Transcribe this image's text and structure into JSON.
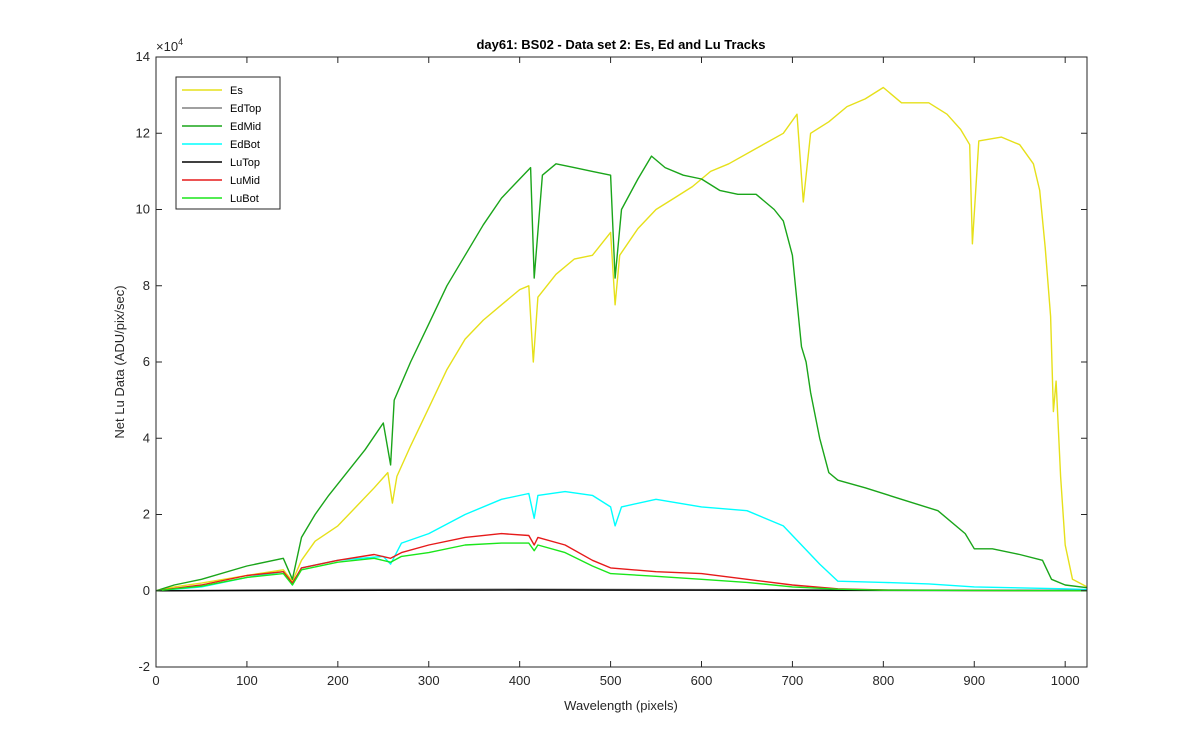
{
  "chart_data": {
    "type": "line",
    "title": "day61: BS02 - Data set 2: Es, Ed and Lu Tracks",
    "xlabel": "Wavelength (pixels)",
    "ylabel": "Net Lu Data (ADU/pix/sec)",
    "xlim": [
      0,
      1024
    ],
    "ylim": [
      -20000,
      140000
    ],
    "xticks": [
      0,
      100,
      200,
      300,
      400,
      500,
      600,
      700,
      800,
      900,
      1000
    ],
    "yticks": [
      -20000,
      0,
      20000,
      40000,
      60000,
      80000,
      100000,
      120000,
      140000
    ],
    "ytick_labels": [
      "-2",
      "0",
      "2",
      "4",
      "6",
      "8",
      "10",
      "12",
      "14"
    ],
    "y_exponent_base": "×10",
    "y_exponent_power": "4",
    "grid": false,
    "legend_position": "top-left",
    "series": [
      {
        "name": "Es",
        "color": "#e6e01a",
        "points": [
          [
            0,
            0
          ],
          [
            20,
            1000
          ],
          [
            50,
            2000
          ],
          [
            100,
            4000
          ],
          [
            140,
            5500
          ],
          [
            150,
            2500
          ],
          [
            160,
            8000
          ],
          [
            175,
            13000
          ],
          [
            200,
            17000
          ],
          [
            220,
            22000
          ],
          [
            240,
            27000
          ],
          [
            255,
            31000
          ],
          [
            260,
            23000
          ],
          [
            265,
            30000
          ],
          [
            280,
            38000
          ],
          [
            300,
            48000
          ],
          [
            320,
            58000
          ],
          [
            340,
            66000
          ],
          [
            360,
            71000
          ],
          [
            380,
            75000
          ],
          [
            400,
            79000
          ],
          [
            410,
            80000
          ],
          [
            415,
            60000
          ],
          [
            420,
            77000
          ],
          [
            440,
            83000
          ],
          [
            460,
            87000
          ],
          [
            480,
            88000
          ],
          [
            500,
            94000
          ],
          [
            505,
            75000
          ],
          [
            510,
            88000
          ],
          [
            530,
            95000
          ],
          [
            550,
            100000
          ],
          [
            570,
            103000
          ],
          [
            590,
            106000
          ],
          [
            610,
            110000
          ],
          [
            630,
            112000
          ],
          [
            660,
            116000
          ],
          [
            690,
            120000
          ],
          [
            705,
            125000
          ],
          [
            712,
            102000
          ],
          [
            720,
            120000
          ],
          [
            740,
            123000
          ],
          [
            760,
            127000
          ],
          [
            780,
            129000
          ],
          [
            800,
            132000
          ],
          [
            820,
            128000
          ],
          [
            850,
            128000
          ],
          [
            870,
            125000
          ],
          [
            885,
            121000
          ],
          [
            895,
            117000
          ],
          [
            898,
            91000
          ],
          [
            905,
            118000
          ],
          [
            930,
            119000
          ],
          [
            950,
            117000
          ],
          [
            965,
            112000
          ],
          [
            972,
            105000
          ],
          [
            978,
            90000
          ],
          [
            984,
            72000
          ],
          [
            987,
            47000
          ],
          [
            990,
            55000
          ],
          [
            995,
            30000
          ],
          [
            1000,
            12000
          ],
          [
            1008,
            3000
          ],
          [
            1024,
            1000
          ]
        ]
      },
      {
        "name": "EdTop",
        "color": "#808080",
        "points": [
          [
            0,
            0
          ],
          [
            100,
            200
          ],
          [
            200,
            300
          ],
          [
            400,
            400
          ],
          [
            600,
            300
          ],
          [
            800,
            200
          ],
          [
            1024,
            100
          ]
        ]
      },
      {
        "name": "EdMid",
        "color": "#1aa51a",
        "points": [
          [
            0,
            0
          ],
          [
            20,
            1500
          ],
          [
            50,
            3000
          ],
          [
            100,
            6500
          ],
          [
            140,
            8500
          ],
          [
            150,
            3000
          ],
          [
            160,
            14000
          ],
          [
            175,
            20000
          ],
          [
            190,
            25000
          ],
          [
            210,
            31000
          ],
          [
            230,
            37000
          ],
          [
            250,
            44000
          ],
          [
            258,
            33000
          ],
          [
            262,
            50000
          ],
          [
            280,
            60000
          ],
          [
            300,
            70000
          ],
          [
            320,
            80000
          ],
          [
            340,
            88000
          ],
          [
            360,
            96000
          ],
          [
            380,
            103000
          ],
          [
            400,
            108000
          ],
          [
            412,
            111000
          ],
          [
            416,
            82000
          ],
          [
            425,
            109000
          ],
          [
            440,
            112000
          ],
          [
            460,
            111000
          ],
          [
            480,
            110000
          ],
          [
            500,
            109000
          ],
          [
            505,
            82000
          ],
          [
            512,
            100000
          ],
          [
            530,
            108000
          ],
          [
            545,
            114000
          ],
          [
            560,
            111000
          ],
          [
            580,
            109000
          ],
          [
            600,
            108000
          ],
          [
            620,
            105000
          ],
          [
            640,
            104000
          ],
          [
            660,
            104000
          ],
          [
            680,
            100000
          ],
          [
            690,
            97000
          ],
          [
            700,
            88000
          ],
          [
            710,
            64000
          ],
          [
            715,
            60000
          ],
          [
            720,
            52000
          ],
          [
            730,
            40000
          ],
          [
            740,
            31000
          ],
          [
            750,
            29000
          ],
          [
            780,
            27000
          ],
          [
            820,
            24000
          ],
          [
            860,
            21000
          ],
          [
            890,
            15000
          ],
          [
            900,
            11000
          ],
          [
            920,
            11000
          ],
          [
            950,
            9500
          ],
          [
            975,
            8000
          ],
          [
            985,
            3000
          ],
          [
            1000,
            1500
          ],
          [
            1024,
            800
          ]
        ]
      },
      {
        "name": "EdBot",
        "color": "#00ffff",
        "points": [
          [
            0,
            0
          ],
          [
            50,
            1000
          ],
          [
            100,
            3500
          ],
          [
            140,
            5000
          ],
          [
            150,
            1500
          ],
          [
            160,
            6000
          ],
          [
            200,
            8000
          ],
          [
            250,
            9000
          ],
          [
            258,
            7000
          ],
          [
            270,
            12500
          ],
          [
            300,
            15000
          ],
          [
            340,
            20000
          ],
          [
            380,
            24000
          ],
          [
            410,
            25500
          ],
          [
            416,
            19000
          ],
          [
            420,
            25000
          ],
          [
            450,
            26000
          ],
          [
            480,
            25000
          ],
          [
            500,
            22000
          ],
          [
            505,
            17000
          ],
          [
            512,
            22000
          ],
          [
            550,
            24000
          ],
          [
            600,
            22000
          ],
          [
            650,
            21000
          ],
          [
            690,
            17000
          ],
          [
            710,
            12000
          ],
          [
            730,
            7000
          ],
          [
            750,
            2500
          ],
          [
            800,
            2200
          ],
          [
            850,
            1800
          ],
          [
            900,
            1000
          ],
          [
            1000,
            500
          ],
          [
            1024,
            300
          ]
        ]
      },
      {
        "name": "LuTop",
        "color": "#000000",
        "points": [
          [
            0,
            0
          ],
          [
            200,
            100
          ],
          [
            400,
            200
          ],
          [
            600,
            150
          ],
          [
            800,
            100
          ],
          [
            1024,
            50
          ]
        ]
      },
      {
        "name": "LuMid",
        "color": "#e61a1a",
        "points": [
          [
            0,
            0
          ],
          [
            50,
            1500
          ],
          [
            100,
            4000
          ],
          [
            140,
            5000
          ],
          [
            150,
            2000
          ],
          [
            160,
            6000
          ],
          [
            200,
            8000
          ],
          [
            240,
            9500
          ],
          [
            258,
            8500
          ],
          [
            270,
            10000
          ],
          [
            300,
            12000
          ],
          [
            340,
            14000
          ],
          [
            380,
            15000
          ],
          [
            410,
            14500
          ],
          [
            416,
            12000
          ],
          [
            420,
            14000
          ],
          [
            450,
            12000
          ],
          [
            480,
            8000
          ],
          [
            500,
            6000
          ],
          [
            550,
            5000
          ],
          [
            600,
            4500
          ],
          [
            650,
            3000
          ],
          [
            700,
            1500
          ],
          [
            750,
            500
          ],
          [
            800,
            200
          ],
          [
            900,
            100
          ],
          [
            1024,
            0
          ]
        ]
      },
      {
        "name": "LuBot",
        "color": "#1ae61a",
        "points": [
          [
            0,
            0
          ],
          [
            50,
            1200
          ],
          [
            100,
            3500
          ],
          [
            140,
            4500
          ],
          [
            150,
            1500
          ],
          [
            160,
            5500
          ],
          [
            200,
            7500
          ],
          [
            240,
            8500
          ],
          [
            258,
            7500
          ],
          [
            270,
            9000
          ],
          [
            300,
            10000
          ],
          [
            340,
            12000
          ],
          [
            380,
            12500
          ],
          [
            410,
            12500
          ],
          [
            416,
            10500
          ],
          [
            420,
            12000
          ],
          [
            450,
            10000
          ],
          [
            480,
            6500
          ],
          [
            500,
            4500
          ],
          [
            550,
            3800
          ],
          [
            600,
            3000
          ],
          [
            650,
            2200
          ],
          [
            700,
            1000
          ],
          [
            750,
            400
          ],
          [
            800,
            150
          ],
          [
            900,
            80
          ],
          [
            1024,
            0
          ]
        ]
      }
    ]
  }
}
